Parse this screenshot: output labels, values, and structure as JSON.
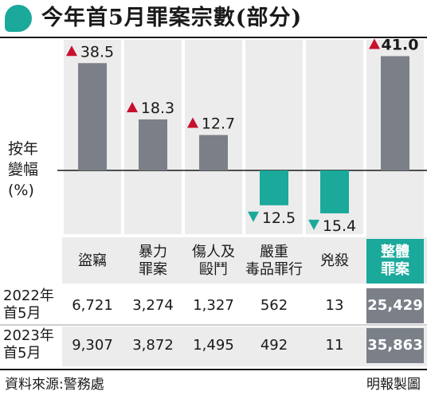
{
  "title": "今年首5月罪案宗數(部分)",
  "y_axis_label": [
    "按年",
    "變幅",
    "(%)"
  ],
  "chart_data": {
    "type": "bar",
    "title": "今年首5月罪案宗數(部分)",
    "ylabel": "按年變幅(%)",
    "categories": [
      "盜竊",
      "暴力罪案",
      "傷人及毆鬥",
      "嚴重毒品罪行",
      "兇殺",
      "整體罪案"
    ],
    "values": [
      38.5,
      18.3,
      12.7,
      -12.5,
      -15.4,
      41.0
    ],
    "value_labels": [
      "38.5",
      "18.3",
      "12.7",
      "12.5",
      "15.4",
      "41.0"
    ],
    "ylim": [
      -20,
      50
    ],
    "grid": false,
    "colors": {
      "bar": "#7b8088",
      "negative_bar": "#1aa99a",
      "up_arrow": "#c8102e",
      "down_arrow": "#1aa99a"
    }
  },
  "table": {
    "headers": [
      [
        "盜竊"
      ],
      [
        "暴力",
        "罪案"
      ],
      [
        "傷人及",
        "毆鬥"
      ],
      [
        "嚴重",
        "毒品罪行"
      ],
      [
        "兇殺"
      ],
      [
        "整體",
        "罪案"
      ]
    ],
    "rows": [
      {
        "label": [
          "2022年",
          "首5月"
        ],
        "values": [
          "6,721",
          "3,274",
          "1,327",
          "562",
          "13",
          "25,429"
        ]
      },
      {
        "label": [
          "2023年",
          "首5月"
        ],
        "values": [
          "9,307",
          "3,872",
          "1,495",
          "492",
          "11",
          "35,863"
        ]
      }
    ]
  },
  "footer": {
    "source": "資料來源:警務處",
    "credit": "明報製圖"
  }
}
